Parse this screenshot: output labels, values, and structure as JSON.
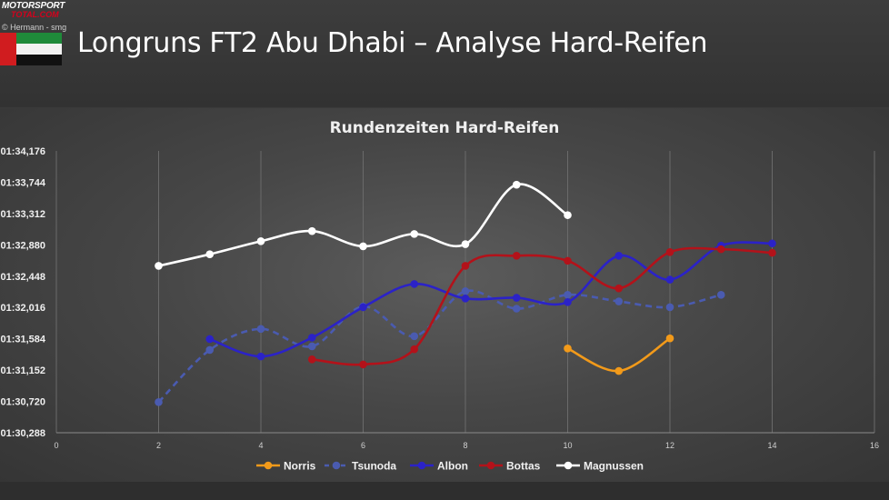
{
  "header": {
    "logo_line1": "MOTORSPORT",
    "logo_line2": "TOTAL.COM",
    "credit": "© Hermann - smg",
    "title": "Longruns FT2 Abu Dhabi – Analyse Hard-Reifen",
    "flag_icon": "uae-flag-icon"
  },
  "colors": {
    "Norris": "#f29a1a",
    "Tsunoda": "#4a5bb0",
    "Albon": "#2b22c8",
    "Bottas": "#b3121a",
    "Magnussen": "#ffffff"
  },
  "chart_data": {
    "type": "line",
    "title": "Rundenzeiten Hard-Reifen",
    "xlabel": "",
    "ylabel": "",
    "xlim": [
      0,
      16
    ],
    "xticks": [
      "0",
      "2",
      "4",
      "6",
      "8",
      "10",
      "12",
      "14",
      "16"
    ],
    "ylim": [
      90.288,
      94.176
    ],
    "yticks": [
      "01:30,288",
      "01:30,720",
      "01:31,152",
      "01:31,584",
      "01:32,016",
      "01:32,448",
      "01:32,880",
      "01:33,312",
      "01:33,744",
      "01:34,176"
    ],
    "grid": "vertical",
    "legend_position": "bottom",
    "series": [
      {
        "name": "Norris",
        "style": "solid",
        "x": [
          10,
          11,
          12
        ],
        "y": [
          91.45,
          91.14,
          91.59
        ]
      },
      {
        "name": "Tsunoda",
        "style": "dashed",
        "x": [
          2,
          3,
          4,
          5,
          6,
          7,
          8,
          9,
          10,
          11,
          12,
          13
        ],
        "y": [
          90.71,
          91.43,
          91.72,
          91.48,
          92.03,
          91.62,
          92.24,
          92.0,
          92.19,
          92.1,
          92.02,
          92.19
        ]
      },
      {
        "name": "Albon",
        "style": "solid",
        "x": [
          3,
          4,
          5,
          6,
          7,
          8,
          9,
          10,
          11,
          12,
          13,
          14
        ],
        "y": [
          91.58,
          91.34,
          91.6,
          92.02,
          92.34,
          92.14,
          92.15,
          92.09,
          92.73,
          92.4,
          92.87,
          92.9
        ]
      },
      {
        "name": "Bottas",
        "style": "solid",
        "x": [
          5,
          6,
          7,
          8,
          9,
          10,
          11,
          12,
          13,
          14
        ],
        "y": [
          91.3,
          91.23,
          91.44,
          92.59,
          92.73,
          92.66,
          92.28,
          92.78,
          92.82,
          92.77
        ]
      },
      {
        "name": "Magnussen",
        "style": "solid",
        "x": [
          2,
          3,
          4,
          5,
          6,
          7,
          8,
          9,
          10
        ],
        "y": [
          92.59,
          92.75,
          92.93,
          93.07,
          92.86,
          93.03,
          92.89,
          93.71,
          93.29
        ]
      }
    ]
  }
}
